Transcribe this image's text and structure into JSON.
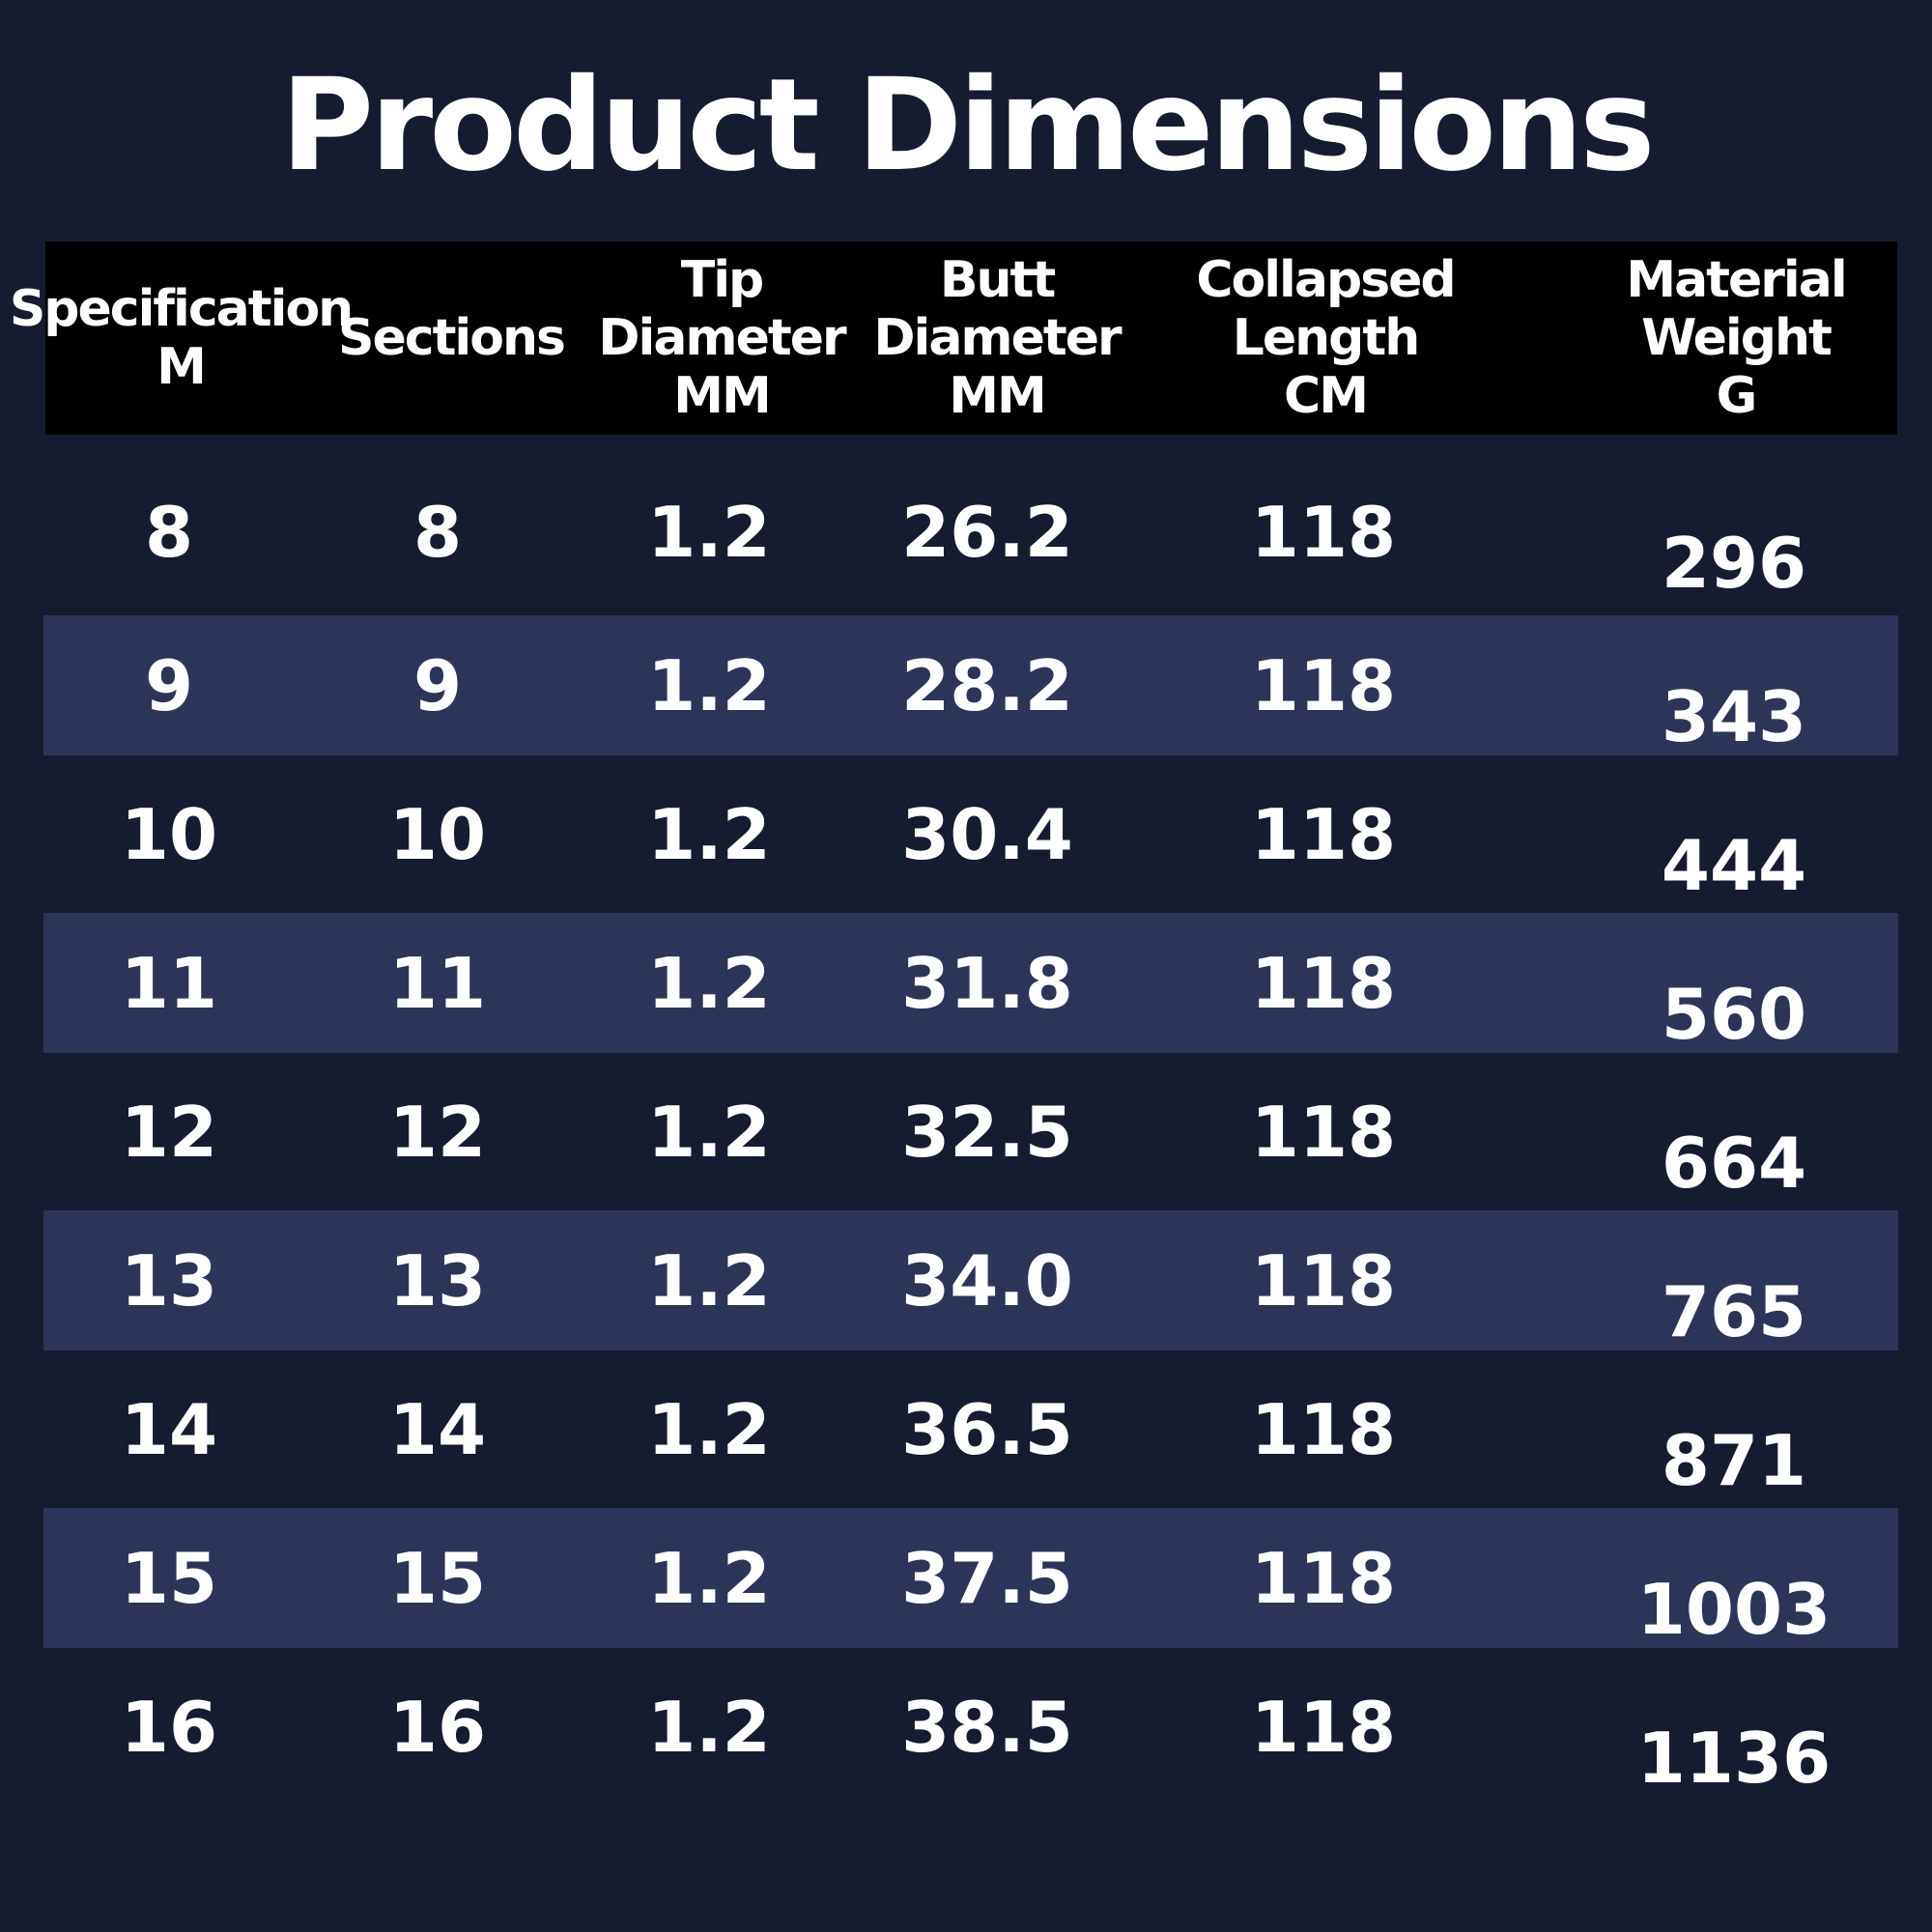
{
  "title": "Product Dimensions",
  "table": {
    "headers": [
      "Specification\nM",
      "Sections",
      "Tip\nDiameter\nMM",
      "Butt\nDiameter\nMM",
      "Collapsed\nLength\nCM",
      "Material\nWeight\nG"
    ],
    "rows": [
      [
        "8",
        "8",
        "1.2",
        "26.2",
        "118",
        "296"
      ],
      [
        "9",
        "9",
        "1.2",
        "28.2",
        "118",
        "343"
      ],
      [
        "10",
        "10",
        "1.2",
        "30.4",
        "118",
        "444"
      ],
      [
        "11",
        "11",
        "1.2",
        "31.8",
        "118",
        "560"
      ],
      [
        "12",
        "12",
        "1.2",
        "32.5",
        "118",
        "664"
      ],
      [
        "13",
        "13",
        "1.2",
        "34.0",
        "118",
        "765"
      ],
      [
        "14",
        "14",
        "1.2",
        "36.5",
        "118",
        "871"
      ],
      [
        "15",
        "15",
        "1.2",
        "37.5",
        "118",
        "1003"
      ],
      [
        "16",
        "16",
        "1.2",
        "38.5",
        "118",
        "1136"
      ]
    ]
  },
  "colors": {
    "background": "#161c2f",
    "header_background": "#000000",
    "stripe": "#2c3558",
    "text": "#ffffff"
  }
}
